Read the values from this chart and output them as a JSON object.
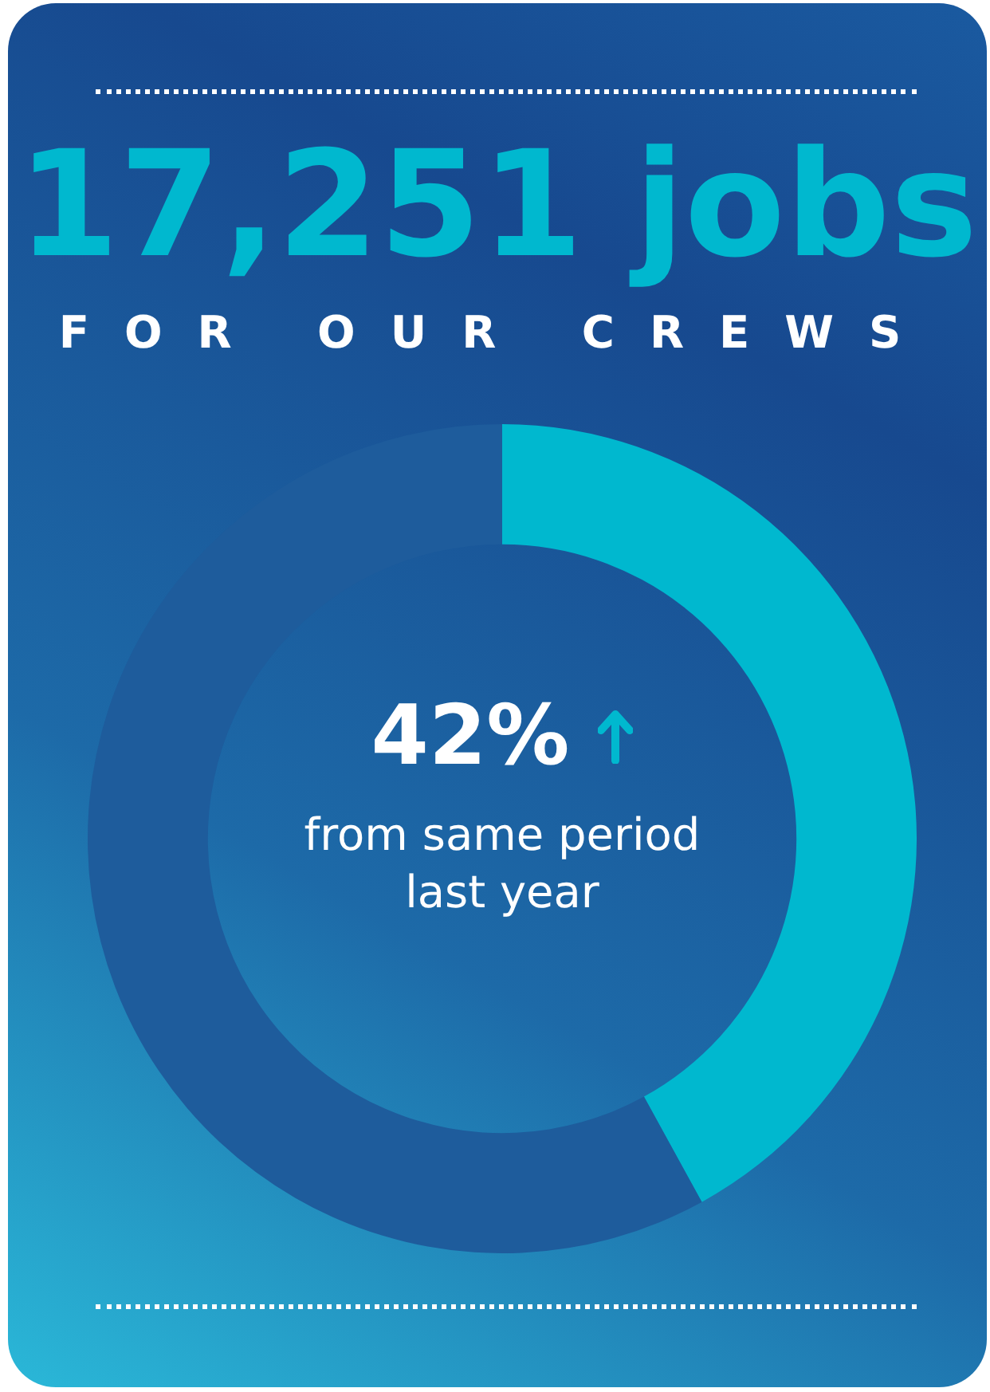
{
  "chart_data": {
    "type": "donut",
    "title": "17,251 jobs",
    "subtitle": "FOR OUR CREWS",
    "categories": [
      null,
      null
    ],
    "values": [
      42,
      58
    ],
    "colors": [
      "#00b8cf",
      "#1e5c9c"
    ],
    "annotations": [
      "42%",
      "from same period last year"
    ],
    "legend": false
  }
}
